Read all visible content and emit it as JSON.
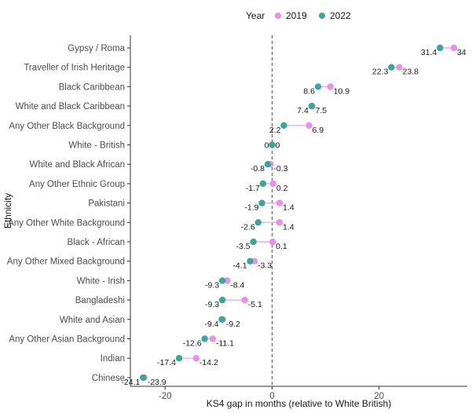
{
  "chart_data": {
    "type": "dumbbell",
    "xlabel": "KS4 gap in months (relative to White British)",
    "ylabel": "Ethnicity",
    "xlim": [
      -26.5,
      36.5
    ],
    "xticks": [
      -20,
      0,
      20
    ],
    "reference_line": 0,
    "grid": false,
    "legend": {
      "title": "Year",
      "position": "top",
      "entries": [
        {
          "name": "2019",
          "color": "#f08cf0"
        },
        {
          "name": "2022",
          "color": "#35a99a"
        }
      ]
    },
    "segment_color": "#f4a7f0",
    "series_names": [
      "2019",
      "2022"
    ],
    "categories": [
      {
        "name": "Gypsy / Roma",
        "v2019": 34,
        "v2022": 31.4,
        "l2019": "34",
        "l2022": "31.4"
      },
      {
        "name": "Traveller of Irish Heritage",
        "v2019": 23.8,
        "v2022": 22.3,
        "l2019": "23.8",
        "l2022": "22.3"
      },
      {
        "name": "Black Caribbean",
        "v2019": 10.9,
        "v2022": 8.6,
        "l2019": "10.9",
        "l2022": "8.6"
      },
      {
        "name": "White and Black Caribbean",
        "v2019": 7.5,
        "v2022": 7.4,
        "l2019": "7.5",
        "l2022": "7.4"
      },
      {
        "name": "Any Other Black Background",
        "v2019": 6.9,
        "v2022": 2.2,
        "l2019": "6.9",
        "l2022": "2.2"
      },
      {
        "name": "White - British",
        "v2019": 0,
        "v2022": 0,
        "l2019": "0",
        "l2022": "0"
      },
      {
        "name": "White and Black African",
        "v2019": -0.3,
        "v2022": -0.8,
        "l2019": "-0.3",
        "l2022": "-0.8"
      },
      {
        "name": "Any Other Ethnic Group",
        "v2019": 0.2,
        "v2022": -1.7,
        "l2019": "0.2",
        "l2022": "-1.7"
      },
      {
        "name": "Pakistani",
        "v2019": 1.4,
        "v2022": -1.9,
        "l2019": "1.4",
        "l2022": "-1.9"
      },
      {
        "name": "Any Other White Background",
        "v2019": 1.4,
        "v2022": -2.6,
        "l2019": "1.4",
        "l2022": "-2.6"
      },
      {
        "name": "Black - African",
        "v2019": 0.1,
        "v2022": -3.5,
        "l2019": "0.1",
        "l2022": "-3.5"
      },
      {
        "name": "Any Other Mixed Background",
        "v2019": -3.3,
        "v2022": -4.1,
        "l2019": "-3.3",
        "l2022": "-4.1"
      },
      {
        "name": "White - Irish",
        "v2019": -8.4,
        "v2022": -9.3,
        "l2019": "-8.4",
        "l2022": "-9.3"
      },
      {
        "name": "Bangladeshi",
        "v2019": -5.1,
        "v2022": -9.3,
        "l2019": "-5.1",
        "l2022": "-9.3"
      },
      {
        "name": "White and Asian",
        "v2019": -9.2,
        "v2022": -9.4,
        "l2019": "-9.2",
        "l2022": "-9.4"
      },
      {
        "name": "Any Other Asian Background",
        "v2019": -11.1,
        "v2022": -12.6,
        "l2019": "-11.1",
        "l2022": "-12.6"
      },
      {
        "name": "Indian",
        "v2019": -14.2,
        "v2022": -17.4,
        "l2019": "-14.2",
        "l2022": "-17.4"
      },
      {
        "name": "Chinese",
        "v2019": -23.9,
        "v2022": -24.1,
        "l2019": "-23.9",
        "l2022": "-24.1"
      }
    ]
  }
}
